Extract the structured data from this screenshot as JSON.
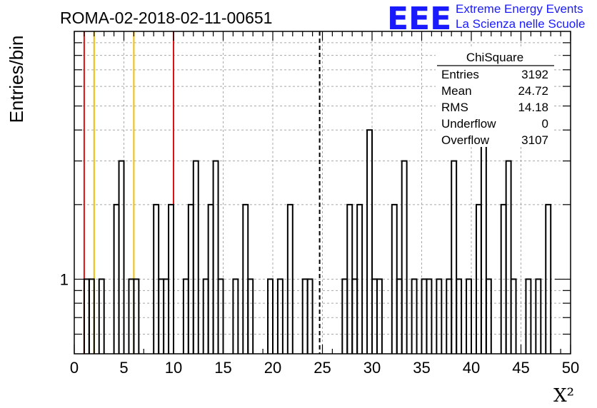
{
  "header": {
    "run_title": "ROMA-02-2018-02-11-00651",
    "logo_mark": "EEE",
    "logo_line1": "Extreme Energy Events",
    "logo_line2": "La Scienza nelle Scuole"
  },
  "stats_box": {
    "title": "ChiSquare",
    "rows": [
      {
        "label": "Entries",
        "value": "3192"
      },
      {
        "label": "Mean",
        "value": "24.72"
      },
      {
        "label": "RMS",
        "value": "14.18"
      },
      {
        "label": "Underflow",
        "value": "0"
      },
      {
        "label": "Overflow",
        "value": "3107"
      }
    ]
  },
  "colors": {
    "histogram": "#000000",
    "red_marker": "#dd1111",
    "yellow_marker": "#f0c000",
    "mean_marker": "#000000",
    "logo": "#1a1aff"
  },
  "chart_data": {
    "type": "histogram",
    "title": "ROMA-02-2018-02-11-00651",
    "xlabel": "X²",
    "ylabel": "Entries/bin",
    "x_range": [
      0,
      50
    ],
    "y_scale": "log",
    "y_range": [
      0.5,
      10
    ],
    "grid": true,
    "x_ticks": [
      0,
      5,
      10,
      15,
      20,
      25,
      30,
      35,
      40,
      45,
      50
    ],
    "y_tick_labels": [
      {
        "value": 1,
        "label": "1"
      }
    ],
    "bin_width": 0.5,
    "bins": [
      {
        "x": 1.0,
        "y": 1
      },
      {
        "x": 1.5,
        "y": 1
      },
      {
        "x": 2.5,
        "y": 1
      },
      {
        "x": 4.0,
        "y": 2
      },
      {
        "x": 4.5,
        "y": 3
      },
      {
        "x": 5.5,
        "y": 1
      },
      {
        "x": 6.0,
        "y": 1
      },
      {
        "x": 8.0,
        "y": 2
      },
      {
        "x": 8.5,
        "y": 1
      },
      {
        "x": 9.0,
        "y": 1
      },
      {
        "x": 9.5,
        "y": 2
      },
      {
        "x": 11.0,
        "y": 1
      },
      {
        "x": 11.5,
        "y": 2
      },
      {
        "x": 12.0,
        "y": 3
      },
      {
        "x": 13.0,
        "y": 1
      },
      {
        "x": 13.5,
        "y": 2
      },
      {
        "x": 14.0,
        "y": 3
      },
      {
        "x": 14.5,
        "y": 1
      },
      {
        "x": 16.0,
        "y": 1
      },
      {
        "x": 17.0,
        "y": 2
      },
      {
        "x": 17.5,
        "y": 1
      },
      {
        "x": 19.5,
        "y": 1
      },
      {
        "x": 20.5,
        "y": 1
      },
      {
        "x": 21.5,
        "y": 2
      },
      {
        "x": 23.0,
        "y": 1
      },
      {
        "x": 23.5,
        "y": 1
      },
      {
        "x": 27.0,
        "y": 1
      },
      {
        "x": 27.5,
        "y": 2
      },
      {
        "x": 28.0,
        "y": 1
      },
      {
        "x": 28.5,
        "y": 2
      },
      {
        "x": 29.5,
        "y": 4
      },
      {
        "x": 30.0,
        "y": 1
      },
      {
        "x": 30.5,
        "y": 1
      },
      {
        "x": 32.0,
        "y": 2
      },
      {
        "x": 32.5,
        "y": 1
      },
      {
        "x": 33.0,
        "y": 3
      },
      {
        "x": 34.0,
        "y": 1
      },
      {
        "x": 35.0,
        "y": 1
      },
      {
        "x": 35.5,
        "y": 1
      },
      {
        "x": 36.5,
        "y": 1
      },
      {
        "x": 37.5,
        "y": 1
      },
      {
        "x": 38.0,
        "y": 3
      },
      {
        "x": 38.5,
        "y": 1
      },
      {
        "x": 39.5,
        "y": 1
      },
      {
        "x": 40.5,
        "y": 2
      },
      {
        "x": 41.0,
        "y": 4
      },
      {
        "x": 41.5,
        "y": 1
      },
      {
        "x": 43.0,
        "y": 2
      },
      {
        "x": 43.5,
        "y": 3
      },
      {
        "x": 44.0,
        "y": 1
      },
      {
        "x": 45.5,
        "y": 1
      },
      {
        "x": 46.5,
        "y": 1
      },
      {
        "x": 47.5,
        "y": 2
      }
    ],
    "vertical_markers": [
      {
        "x": 1.0,
        "color": "#dd1111",
        "style": "solid"
      },
      {
        "x": 10.0,
        "color": "#dd1111",
        "style": "solid"
      },
      {
        "x": 2.0,
        "color": "#f0c000",
        "style": "solid"
      },
      {
        "x": 6.0,
        "color": "#f0c000",
        "style": "solid"
      },
      {
        "x": 24.72,
        "color": "#000000",
        "style": "dashed"
      }
    ]
  }
}
